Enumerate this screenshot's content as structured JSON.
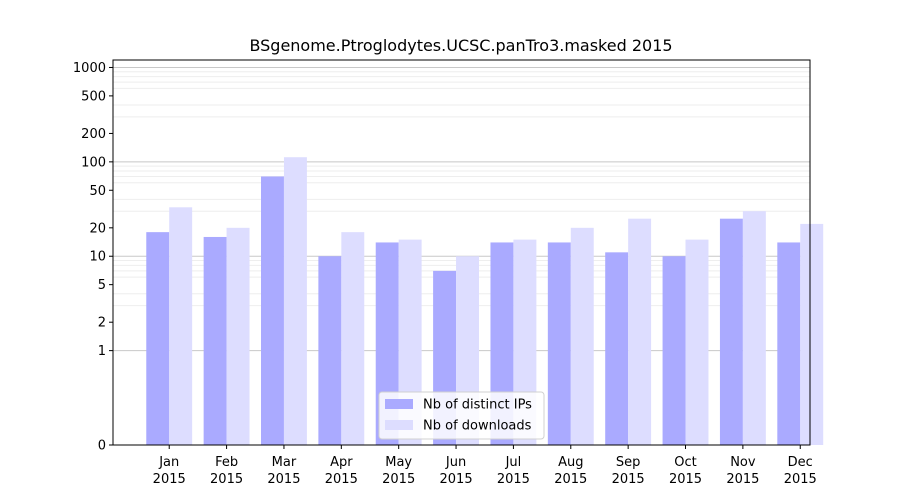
{
  "chart_data": {
    "type": "bar",
    "title": "BSgenome.Ptroglodytes.UCSC.panTro3.masked 2015",
    "xlabel": "",
    "ylabel": "",
    "yscale": "symlog",
    "ylim": [
      0,
      1200
    ],
    "yticks": [
      0,
      1,
      2,
      5,
      10,
      20,
      50,
      100,
      200,
      500,
      1000
    ],
    "ytick_labels": [
      "0",
      "1",
      "2",
      "5",
      "10",
      "20",
      "50",
      "100",
      "200",
      "500",
      "1000"
    ],
    "categories": [
      [
        "Jan",
        "2015"
      ],
      [
        "Feb",
        "2015"
      ],
      [
        "Mar",
        "2015"
      ],
      [
        "Apr",
        "2015"
      ],
      [
        "May",
        "2015"
      ],
      [
        "Jun",
        "2015"
      ],
      [
        "Jul",
        "2015"
      ],
      [
        "Aug",
        "2015"
      ],
      [
        "Sep",
        "2015"
      ],
      [
        "Oct",
        "2015"
      ],
      [
        "Nov",
        "2015"
      ],
      [
        "Dec",
        "2015"
      ]
    ],
    "series": [
      {
        "name": "Nb of distinct IPs",
        "color": "#aaaaff",
        "values": [
          18,
          16,
          70,
          10,
          14,
          7,
          14,
          14,
          11,
          10,
          25,
          14
        ]
      },
      {
        "name": "Nb of downloads",
        "color": "#ddddff",
        "values": [
          33,
          20,
          112,
          18,
          15,
          10,
          15,
          20,
          25,
          15,
          30,
          22
        ]
      }
    ],
    "grid": true,
    "legend_position": "bottom-center"
  }
}
